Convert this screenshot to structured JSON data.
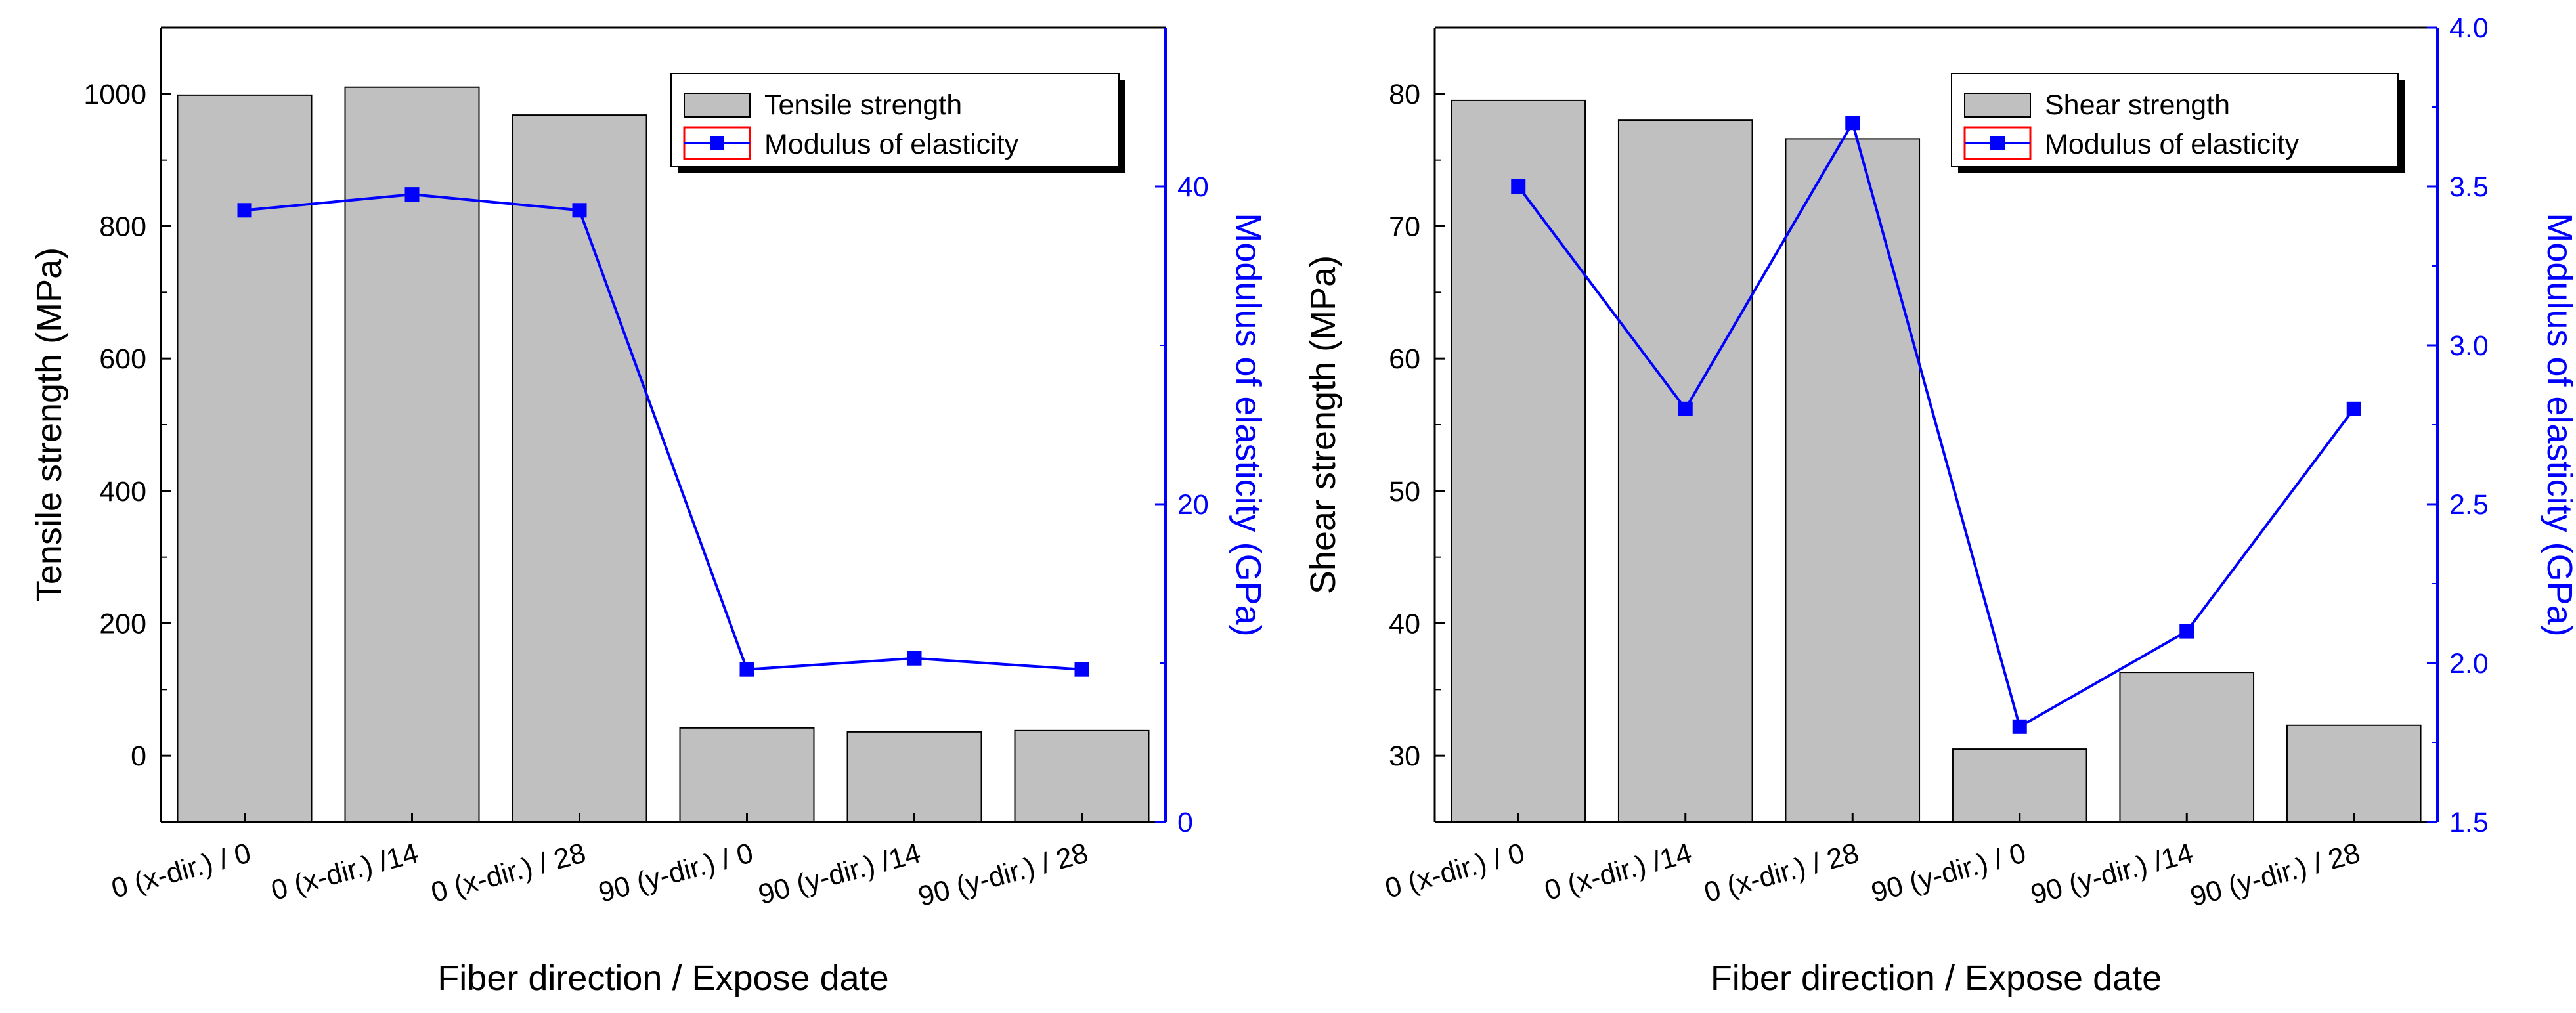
{
  "chart_data": [
    {
      "type": "bar",
      "categories": [
        "0 (x-dir.) / 0",
        "0 (x-dir.) /14",
        "0 (x-dir.) / 28",
        "90 (y-dir.) / 0",
        "90 (y-dir.) /14",
        "90 (y-dir.) / 28"
      ],
      "series": [
        {
          "name": "Tensile strength",
          "axis": "left",
          "kind": "bar",
          "values": [
            998,
            1010,
            968,
            42,
            36,
            38
          ]
        },
        {
          "name": "Modulus of elasticity",
          "axis": "right",
          "kind": "line",
          "values": [
            38.5,
            39.5,
            38.5,
            9.6,
            10.3,
            9.6
          ]
        }
      ],
      "xlabel": "Fiber direction / Expose date",
      "ylabel": "Tensile strength (MPa)",
      "y2label": "Modulus of elasticity (GPa)",
      "ylim": [
        -100,
        1100
      ],
      "y2lim": [
        0,
        50
      ],
      "yticks": [
        "0",
        "200",
        "400",
        "600",
        "800",
        "1000"
      ],
      "y2ticks": [
        "0",
        "20",
        "40"
      ],
      "legend": [
        "Tensile strength",
        "Modulus of elasticity"
      ],
      "colors": {
        "bar_fill": "#c0c0c0",
        "bar_edge": "#000000",
        "line": "#0000ff",
        "right_axis": "#0000ff",
        "legend_marker_box": "#ff0000"
      }
    },
    {
      "type": "bar",
      "categories": [
        "0 (x-dir.) / 0",
        "0 (x-dir.) /14",
        "0 (x-dir.) / 28",
        "90 (y-dir.) / 0",
        "90 (y-dir.) /14",
        "90 (y-dir.) / 28"
      ],
      "series": [
        {
          "name": "Shear strength",
          "axis": "left",
          "kind": "bar",
          "values": [
            79.5,
            78.0,
            76.6,
            30.5,
            36.3,
            32.3
          ]
        },
        {
          "name": "Modulus of elasticity",
          "axis": "right",
          "kind": "line",
          "values": [
            3.5,
            2.8,
            3.7,
            1.8,
            2.1,
            2.8
          ]
        }
      ],
      "xlabel": "Fiber direction / Expose date",
      "ylabel": "Shear strength (MPa)",
      "y2label": "Modulus of elasticity (GPa)",
      "ylim": [
        25,
        85
      ],
      "y2lim": [
        1.5,
        4.0
      ],
      "yticks": [
        "30",
        "40",
        "50",
        "60",
        "70",
        "80"
      ],
      "y2ticks": [
        "1.5",
        "2.0",
        "2.5",
        "3.0",
        "3.5",
        "4.0"
      ],
      "legend": [
        "Shear strength",
        "Modulus of elasticity"
      ],
      "colors": {
        "bar_fill": "#c0c0c0",
        "bar_edge": "#000000",
        "line": "#0000ff",
        "right_axis": "#0000ff",
        "legend_marker_box": "#ff0000"
      }
    }
  ]
}
